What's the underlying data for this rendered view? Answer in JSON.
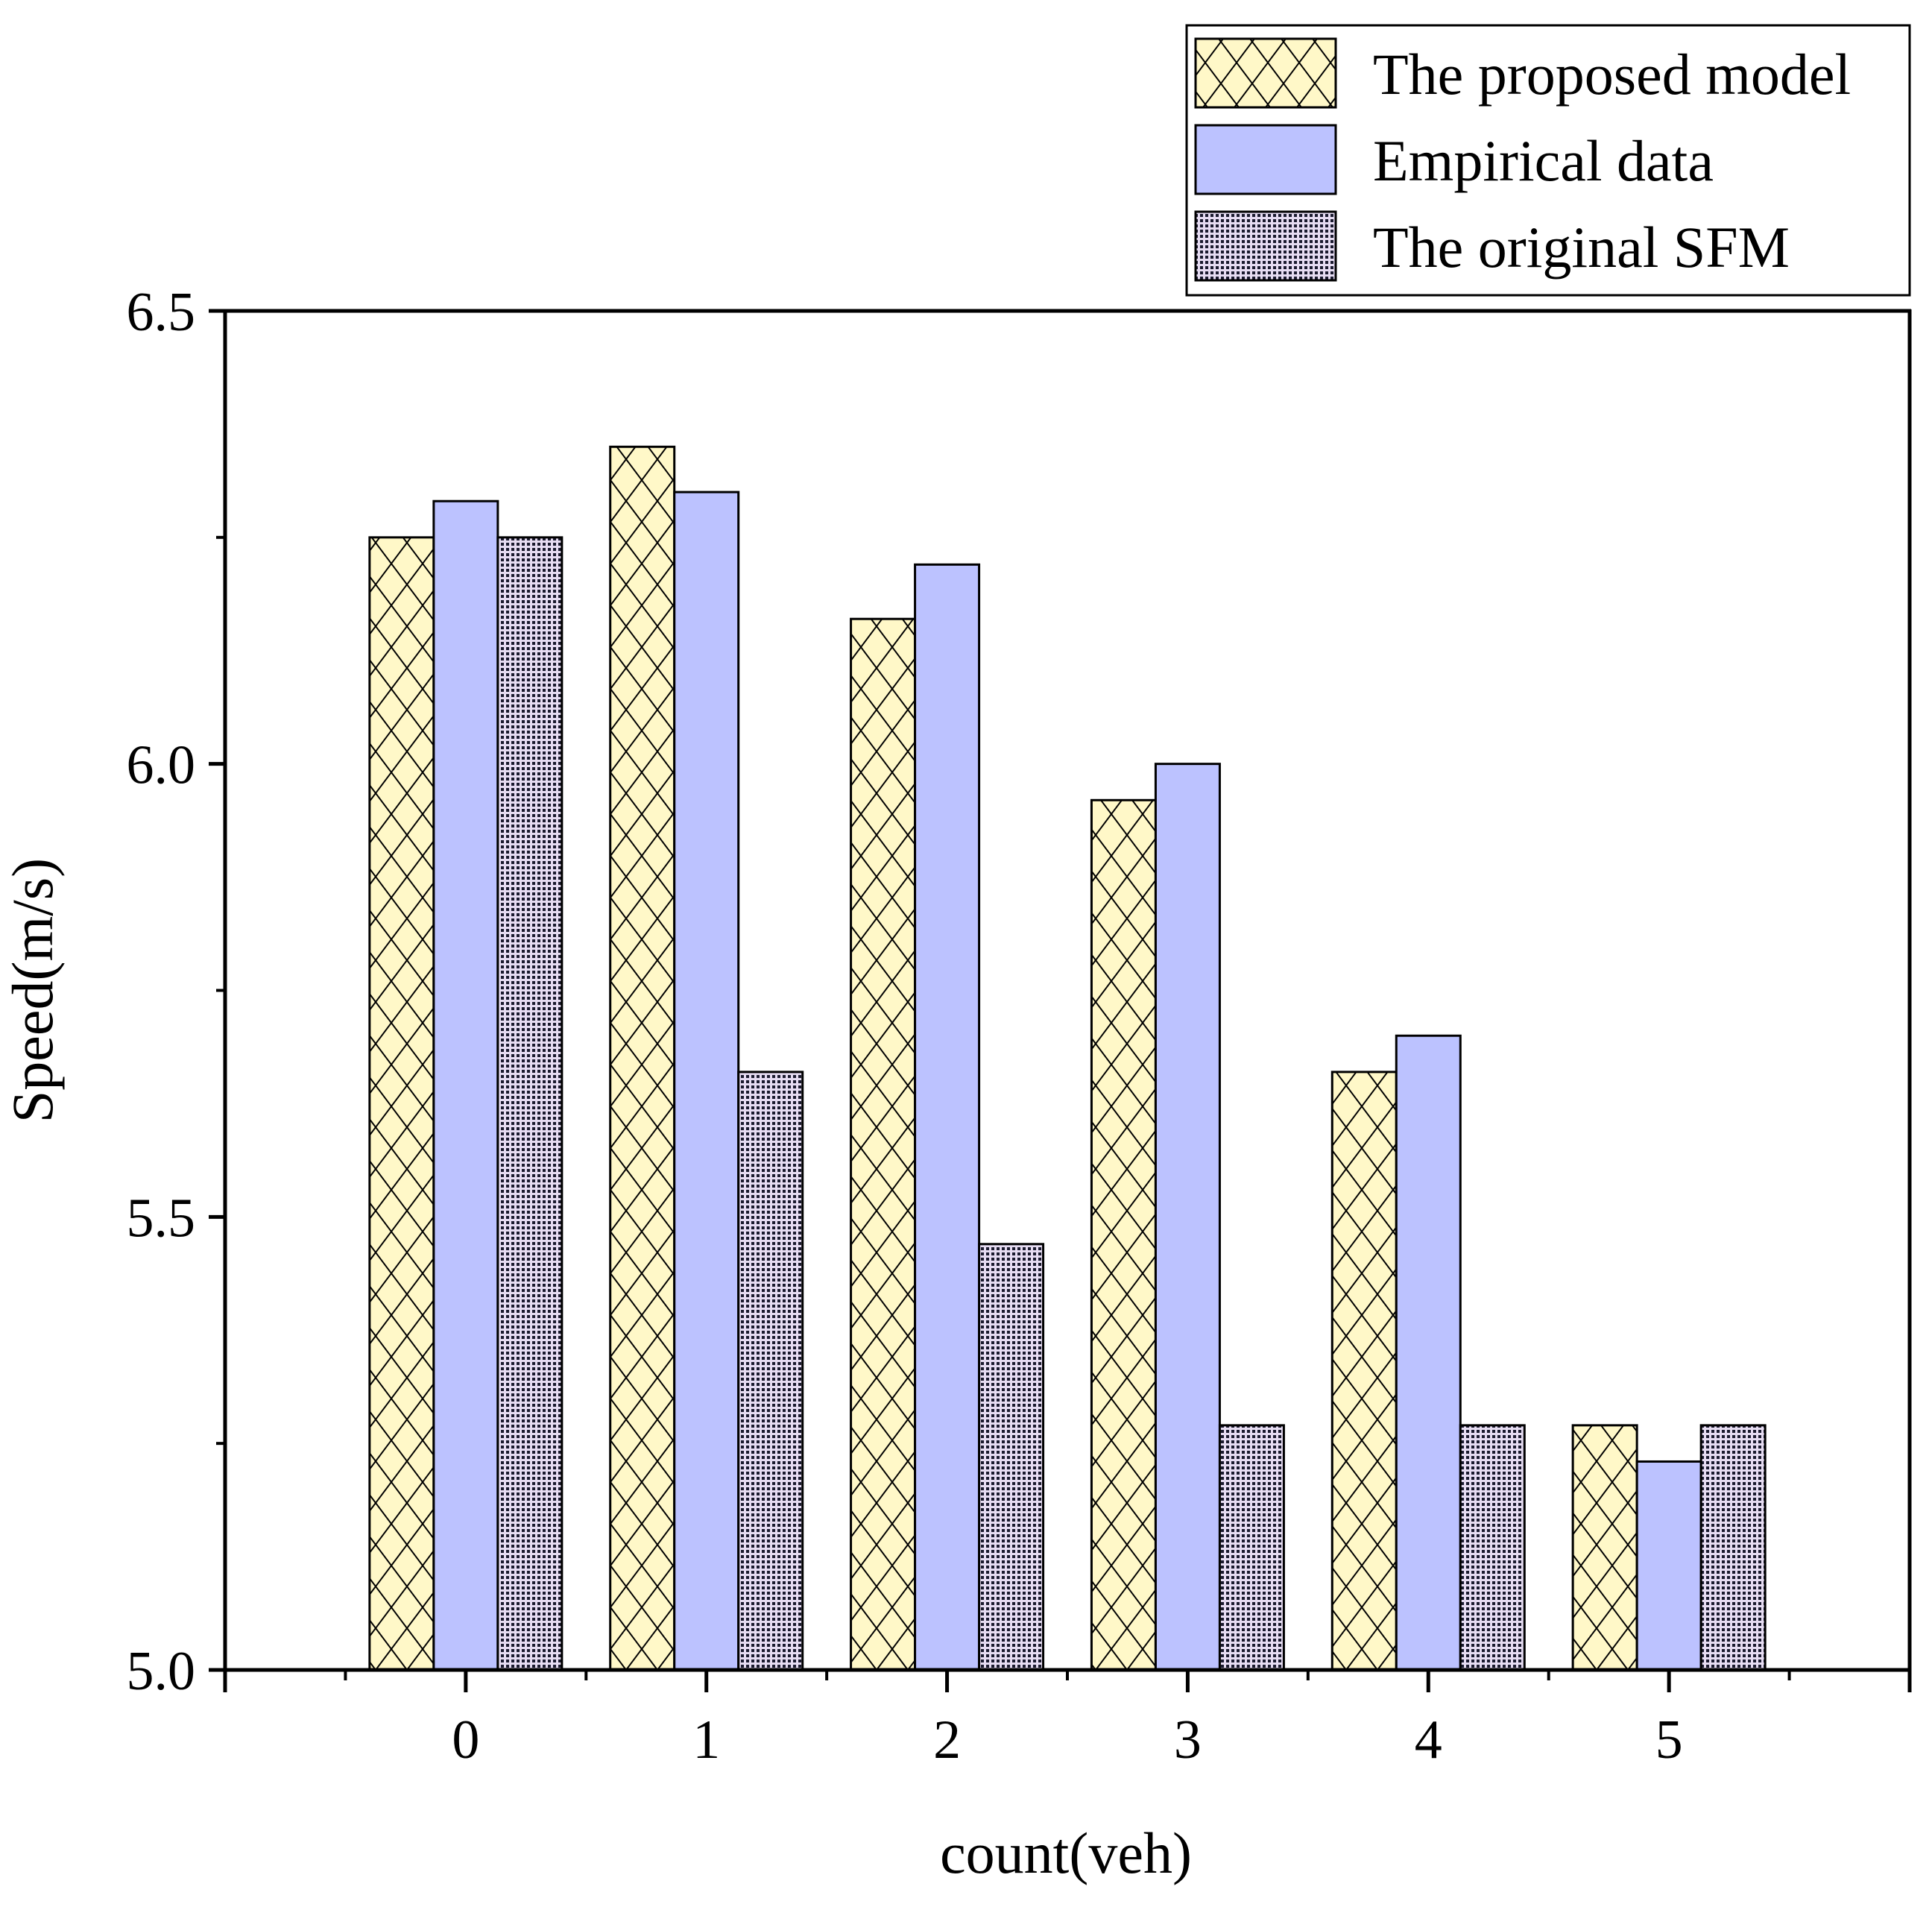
{
  "chart_data": {
    "type": "bar",
    "title": "",
    "xlabel": "count(veh)",
    "ylabel": "Speed(m/s)",
    "categories": [
      "0",
      "1",
      "2",
      "3",
      "4",
      "5"
    ],
    "xlim": [
      -1,
      6
    ],
    "ylim": [
      5.0,
      6.5
    ],
    "yticks": [
      5.0,
      5.5,
      6.0,
      6.5
    ],
    "ytick_labels": [
      "5.0",
      "5.5",
      "6.0",
      "6.5"
    ],
    "grid": false,
    "legend_position": "top-right",
    "series": [
      {
        "name": "The proposed model",
        "values": [
          6.25,
          6.35,
          6.16,
          5.96,
          5.66,
          5.27
        ],
        "color": "#FFF8C8",
        "pattern": "crosshatch"
      },
      {
        "name": "Empirical data",
        "values": [
          6.29,
          6.3,
          6.22,
          6.0,
          5.7,
          5.23
        ],
        "color": "#BCC2FF",
        "pattern": "solid"
      },
      {
        "name": "The original SFM",
        "values": [
          6.25,
          5.66,
          5.47,
          5.27,
          5.27,
          5.27
        ],
        "color": "#C7B8DE",
        "pattern": "dots"
      }
    ]
  }
}
